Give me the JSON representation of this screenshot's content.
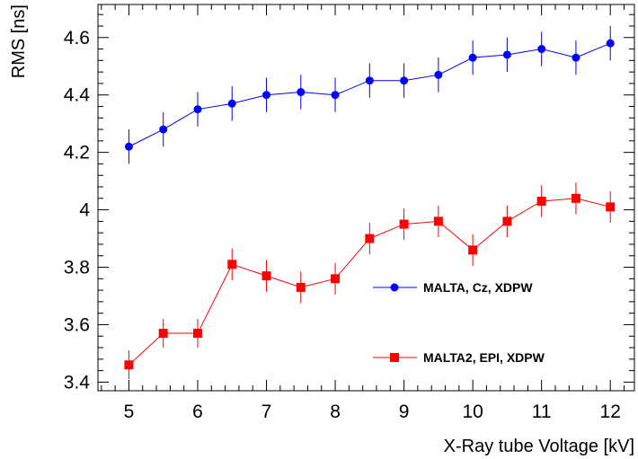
{
  "chart_data": {
    "type": "line",
    "xlabel": "X-Ray tube Voltage [kV]",
    "ylabel": "RMS [ns]",
    "xlim": [
      4.55,
      12.35
    ],
    "ylim": [
      3.37,
      4.715
    ],
    "xticks": [
      "5",
      "6",
      "7",
      "8",
      "9",
      "10",
      "11",
      "12"
    ],
    "yticks": [
      "3.4",
      "3.6",
      "3.8",
      "4",
      "4.2",
      "4.4",
      "4.6"
    ],
    "grid": false,
    "legend_placement": "right",
    "series": [
      {
        "name": "MALTA, Cz, XDPW",
        "color": "#0000ff",
        "marker": "circle",
        "x": [
          5,
          5.5,
          6,
          6.5,
          7,
          7.5,
          8,
          8.5,
          9,
          9.5,
          10,
          10.5,
          11,
          11.5,
          12
        ],
        "y": [
          4.22,
          4.28,
          4.35,
          4.37,
          4.4,
          4.41,
          4.4,
          4.45,
          4.45,
          4.47,
          4.53,
          4.54,
          4.56,
          4.53,
          4.58
        ],
        "yerr": [
          0.06,
          0.06,
          0.06,
          0.06,
          0.06,
          0.06,
          0.06,
          0.06,
          0.06,
          0.06,
          0.06,
          0.06,
          0.06,
          0.06,
          0.06
        ]
      },
      {
        "name": "MALTA2, EPI, XDPW",
        "color": "#ff0000",
        "marker": "square",
        "x": [
          5,
          5.5,
          6,
          6.5,
          7,
          7.5,
          8,
          8.5,
          9,
          9.5,
          10,
          10.5,
          11,
          11.5,
          12
        ],
        "y": [
          3.46,
          3.57,
          3.57,
          3.81,
          3.77,
          3.73,
          3.76,
          3.9,
          3.95,
          3.96,
          3.86,
          3.96,
          4.03,
          4.04,
          4.01
        ],
        "yerr": [
          0.05,
          0.05,
          0.05,
          0.055,
          0.055,
          0.055,
          0.055,
          0.055,
          0.055,
          0.055,
          0.055,
          0.055,
          0.055,
          0.055,
          0.055
        ]
      }
    ]
  }
}
